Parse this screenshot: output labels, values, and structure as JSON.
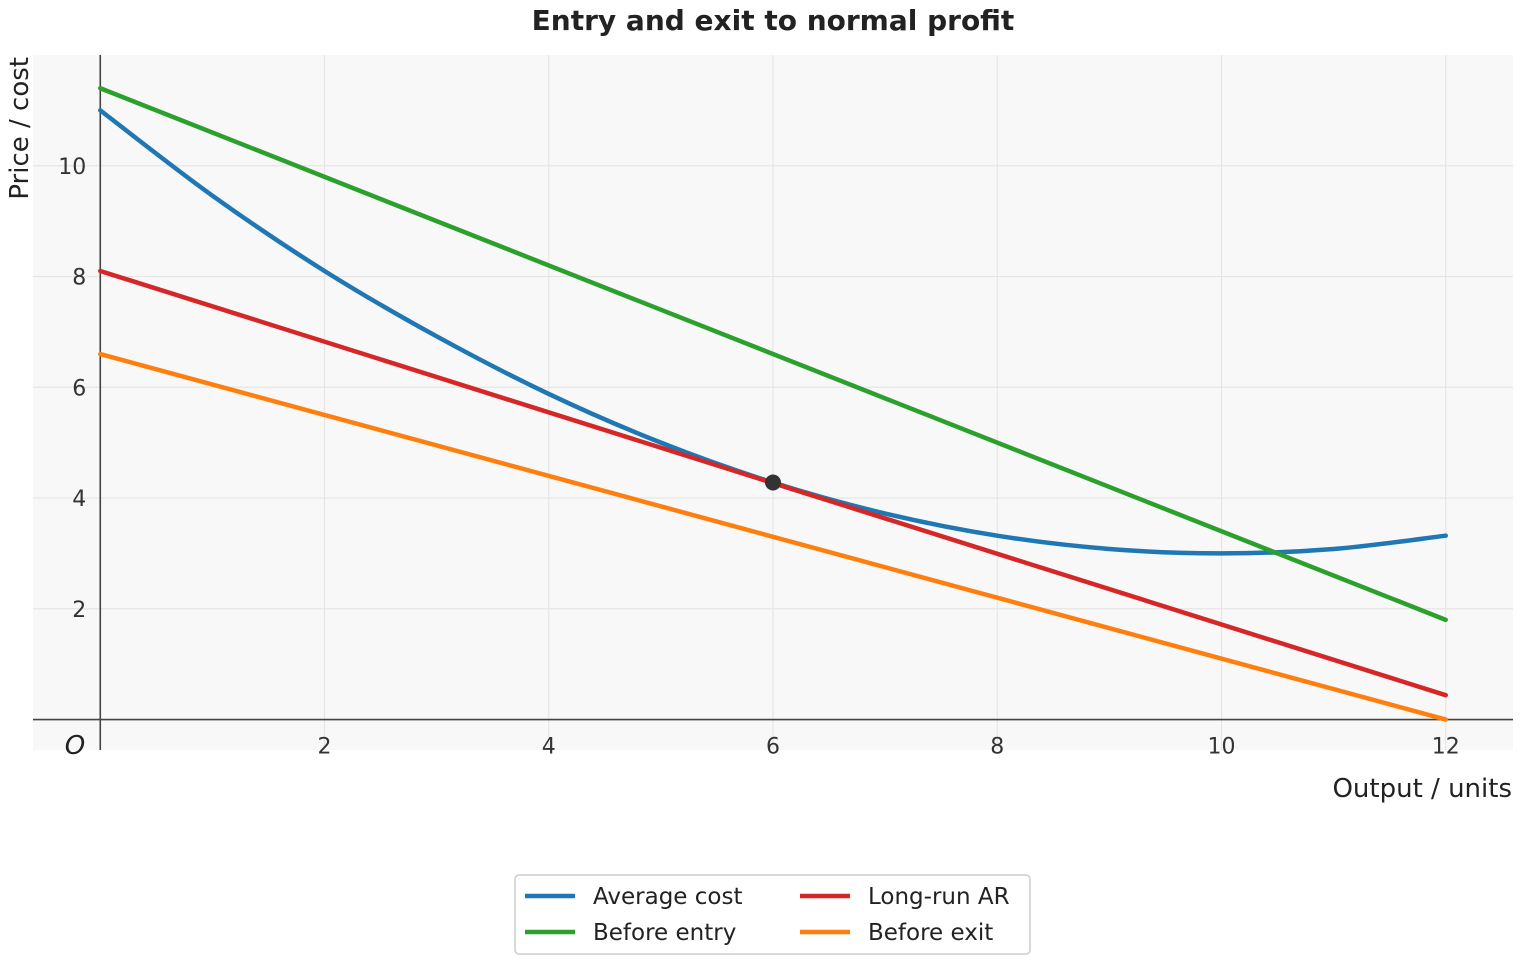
{
  "chart_data": {
    "type": "line",
    "title": "Entry and exit to normal profit",
    "xlabel": "Output / units",
    "ylabel": "Price / cost",
    "origin_label": "O",
    "xlim": [
      -0.6,
      12.6
    ],
    "ylim": [
      -0.55,
      12
    ],
    "x_ticks": [
      2,
      4,
      6,
      8,
      10,
      12
    ],
    "y_ticks": [
      2,
      4,
      6,
      8,
      10
    ],
    "grid": true,
    "legend_position": "bottom-center",
    "series": [
      {
        "name": "Average cost",
        "color": "#1f77b4",
        "x": [
          0,
          1,
          2,
          3,
          4,
          5,
          6,
          7,
          8,
          9,
          10,
          11,
          12
        ],
        "y": [
          11.0,
          9.46,
          8.1,
          6.92,
          5.88,
          5.0,
          4.28,
          3.72,
          3.32,
          3.08,
          3.0,
          3.08,
          3.32
        ]
      },
      {
        "name": "Before entry",
        "color": "#2ca02c",
        "x": [
          0,
          12
        ],
        "y": [
          11.4,
          1.8
        ]
      },
      {
        "name": "Long-run AR",
        "color": "#d62728",
        "x": [
          0,
          12
        ],
        "y": [
          8.1,
          0.44
        ]
      },
      {
        "name": "Before exit",
        "color": "#ff7f0e",
        "x": [
          0,
          12
        ],
        "y": [
          6.6,
          0.0
        ]
      }
    ],
    "points": [
      {
        "x": 6,
        "y": 4.28,
        "color": "#333333"
      }
    ]
  }
}
